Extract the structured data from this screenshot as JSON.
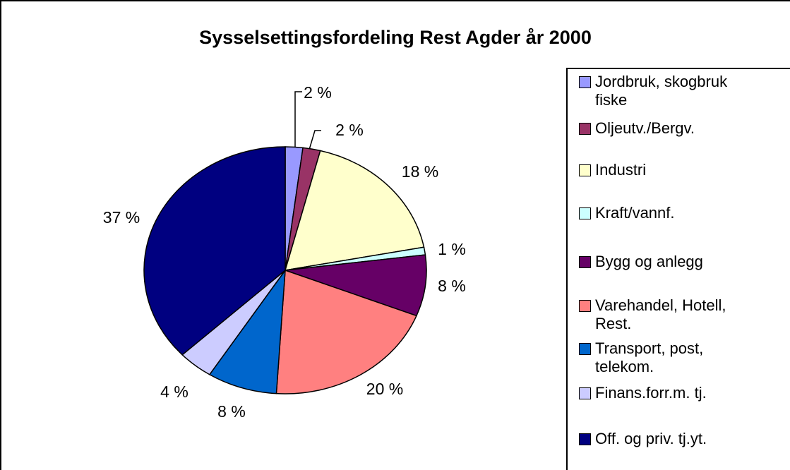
{
  "chart_data": {
    "type": "pie",
    "title": "Sysselsettingsfordeling Rest Agder år 2000",
    "categories": [
      "Jordbruk, skogbruk fiske",
      "Oljeutv./Bergv.",
      "Industri",
      "Kraft/vannf.",
      "Bygg og anlegg",
      "Varehandel, Hotell, Rest.",
      "Transport, post, telekom.",
      "Finans.forr.m. tj.",
      "Off. og priv. tj.yt."
    ],
    "values": [
      2,
      2,
      18,
      1,
      8,
      20,
      8,
      4,
      37
    ],
    "value_labels": [
      "2 %",
      "2 %",
      "18 %",
      "1 %",
      "8 %",
      "20 %",
      "8 %",
      "4 %",
      "37 %"
    ],
    "colors": [
      "#9999ff",
      "#993366",
      "#ffffcc",
      "#ccffff",
      "#660066",
      "#ff8080",
      "#0066cc",
      "#ccccff",
      "#000080"
    ],
    "legend": "right"
  }
}
